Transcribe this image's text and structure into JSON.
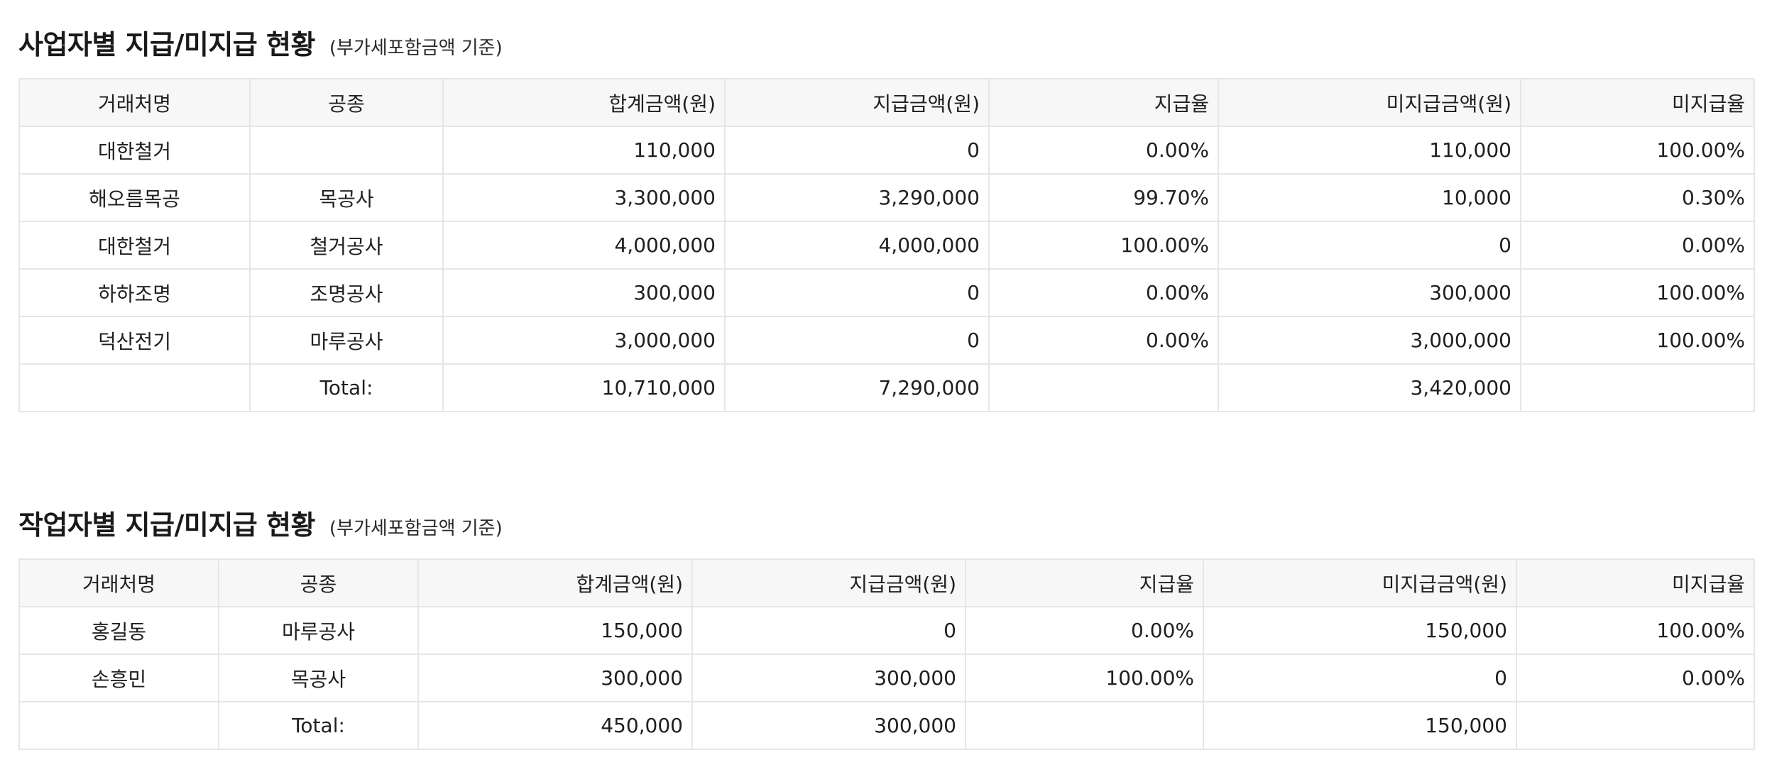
{
  "section1": {
    "title": "사업자별 지급/미지급 현황",
    "subtitle": "(부가세포함금액 기준)",
    "headers": [
      "거래처명",
      "공종",
      "합계금액(원)",
      "지급금액(원)",
      "지급율",
      "미지급금액(원)",
      "미지급율"
    ],
    "rows": [
      [
        "대한철거",
        "",
        "110,000",
        "0",
        "0.00%",
        "110,000",
        "100.00%"
      ],
      [
        "해오름목공",
        "목공사",
        "3,300,000",
        "3,290,000",
        "99.70%",
        "10,000",
        "0.30%"
      ],
      [
        "대한철거",
        "철거공사",
        "4,000,000",
        "4,000,000",
        "100.00%",
        "0",
        "0.00%"
      ],
      [
        "하하조명",
        "조명공사",
        "300,000",
        "0",
        "0.00%",
        "300,000",
        "100.00%"
      ],
      [
        "덕산전기",
        "마루공사",
        "3,000,000",
        "0",
        "0.00%",
        "3,000,000",
        "100.00%"
      ]
    ],
    "total": {
      "label": "Total:",
      "sum": "10,710,000",
      "paid": "7,290,000",
      "unpaid": "3,420,000"
    }
  },
  "section2": {
    "title": "작업자별 지급/미지급 현황",
    "subtitle": "(부가세포함금액 기준)",
    "headers": [
      "거래처명",
      "공종",
      "합계금액(원)",
      "지급금액(원)",
      "지급율",
      "미지급금액(원)",
      "미지급율"
    ],
    "rows": [
      [
        "홍길동",
        "마루공사",
        "150,000",
        "0",
        "0.00%",
        "150,000",
        "100.00%"
      ],
      [
        "손흥민",
        "목공사",
        "300,000",
        "300,000",
        "100.00%",
        "0",
        "0.00%"
      ]
    ],
    "total": {
      "label": "Total:",
      "sum": "450,000",
      "paid": "300,000",
      "unpaid": "150,000"
    }
  }
}
